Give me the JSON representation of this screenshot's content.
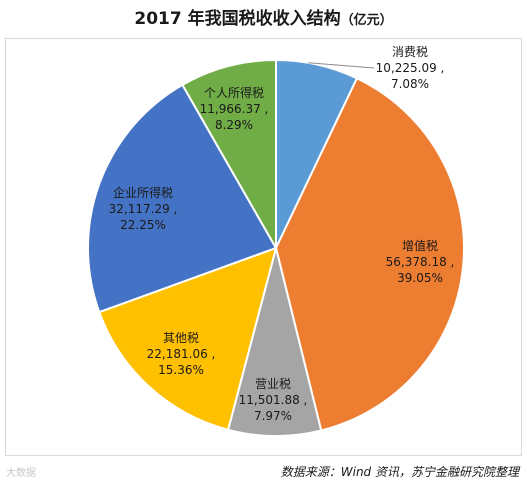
{
  "chart_data": {
    "type": "pie",
    "title": "2017 年我国税收收入结构",
    "unit": "（亿元）",
    "categories": [
      "消费税",
      "增值税",
      "营业税",
      "其他税",
      "企业所得税",
      "个人所得税"
    ],
    "values": [
      10225.09,
      56378.18,
      11501.88,
      22181.06,
      32117.29,
      11966.37
    ],
    "value_labels": [
      "10,225.09 ,",
      "56,378.18 ,",
      "11,501.88 ,",
      "22,181.06 ,",
      "32,117.29 ,",
      "11,966.37 ,"
    ],
    "percent_labels": [
      "7.08%",
      "39.05%",
      "7.97%",
      "15.36%",
      "22.25%",
      "8.29%"
    ],
    "colors": [
      "#5B9BD5",
      "#ED7D31",
      "#A5A5A5",
      "#FFC000",
      "#4472C4",
      "#70AD47"
    ],
    "start_angle": "12 o'clock",
    "direction": "clockwise"
  },
  "source": "数据来源：Wind 资讯，苏宁金融研究院整理",
  "watermark": "大数据"
}
